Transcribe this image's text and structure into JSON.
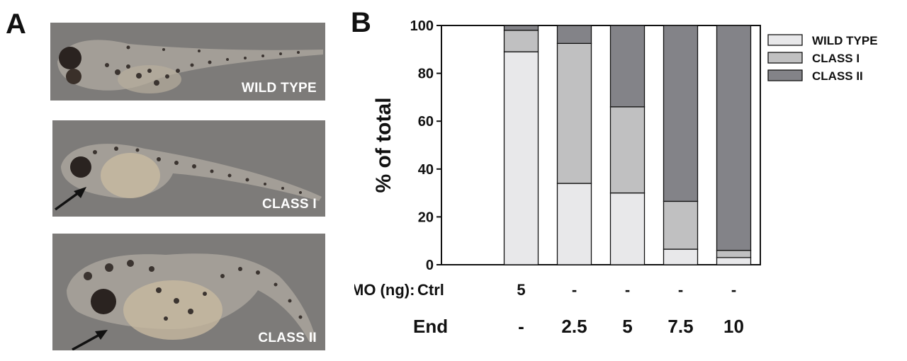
{
  "panel_a": {
    "letter": "A",
    "photos": [
      {
        "label": "WILD TYPE",
        "arrow": false
      },
      {
        "label": "CLASS I",
        "arrow": true
      },
      {
        "label": "CLASS II",
        "arrow": true
      }
    ]
  },
  "panel_b": {
    "letter": "B"
  },
  "colors": {
    "wild_type": "#e8e8ea",
    "class_i": "#c0c0c1",
    "class_ii": "#838388",
    "photo_bg": "#7d7b79"
  },
  "chart_data": {
    "type": "bar",
    "stacked": true,
    "ylabel": "% of total",
    "ylim": [
      0,
      100
    ],
    "yticks": [
      0,
      20,
      40,
      60,
      80,
      100
    ],
    "grid": false,
    "legend_position": "right",
    "categories": [
      "Ctrl",
      "5",
      "-",
      "-",
      "-",
      "-"
    ],
    "series": [
      {
        "name": "WILD TYPE",
        "color": "#e8e8ea",
        "values": [
          null,
          89,
          34,
          30,
          6.5,
          3
        ]
      },
      {
        "name": "CLASS I",
        "color": "#c0c0c1",
        "values": [
          null,
          9,
          58.5,
          36,
          20,
          3
        ]
      },
      {
        "name": "CLASS II",
        "color": "#838388",
        "values": [
          null,
          2,
          7.5,
          34,
          73.5,
          94
        ]
      }
    ],
    "row_labels": [
      {
        "label": "MO (ng):",
        "values": [
          "Ctrl",
          "5",
          "-",
          "-",
          "-",
          "-"
        ]
      },
      {
        "label": "End",
        "values": [
          "",
          "-",
          "2.5",
          "5",
          "7.5",
          "10"
        ]
      }
    ]
  }
}
